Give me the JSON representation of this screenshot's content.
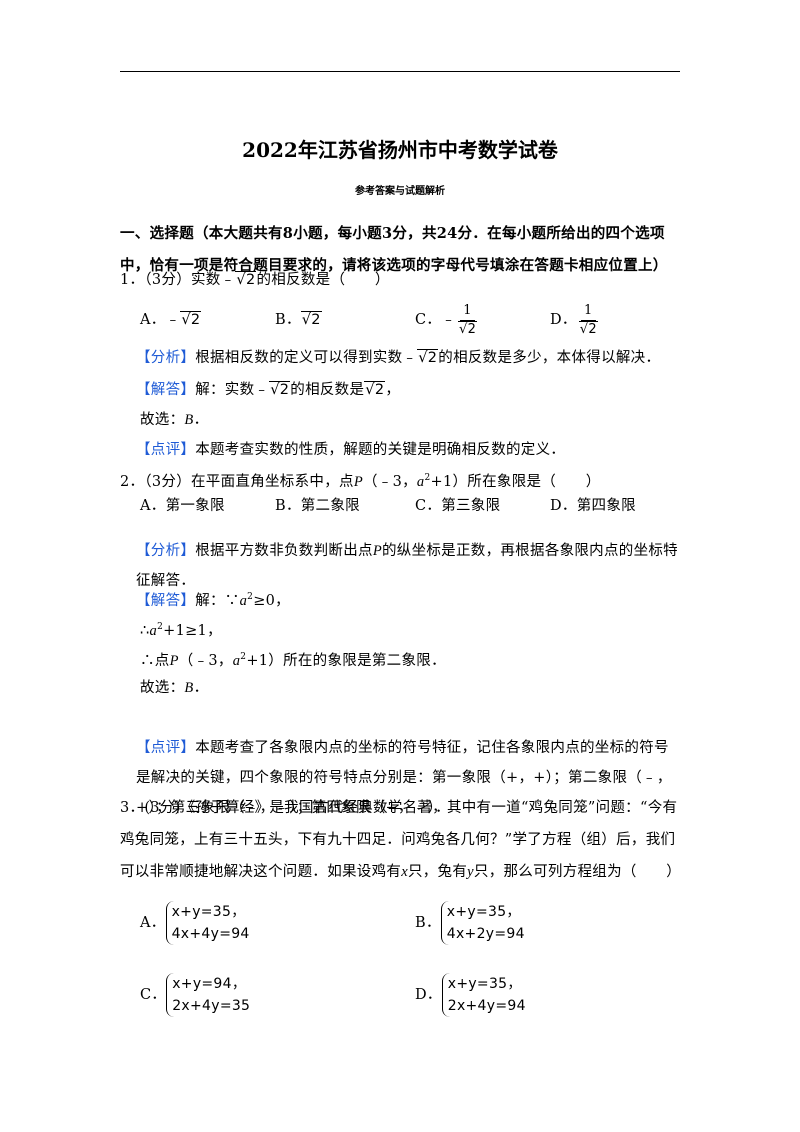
{
  "header": {
    "title": "2022年江苏省扬州市中考数学试卷",
    "subtitle": "参考答案与试题解析"
  },
  "section": {
    "heading": "一、选择题（本大题共有8小题，每小题3分，共24分．在每小题所给出的四个选项中，恰有一项是符合题目要求的，请将该选项的字母代号填涂在答题卡相应位置上）"
  },
  "questions": [
    {
      "stem": [
        "1．（3分）实数﹣",
        "√2",
        "的相反数是（　　）"
      ],
      "options": [
        [
          "A．",
          "﹣",
          "√2"
        ],
        [
          "B．",
          "√2"
        ],
        [
          "C．",
          "﹣",
          "1",
          "√2"
        ],
        [
          "D．",
          "1",
          "√2"
        ]
      ],
      "analysis": [
        "【分析】",
        "根据相反数的定义可以得到实数﹣",
        "√2",
        "的相反数是多少，本体得以解决．"
      ],
      "answer": [
        "【解答】",
        "解：实数﹣",
        "√2",
        "的相反数是",
        "√2",
        "，"
      ],
      "choice": [
        "故选：",
        "B",
        "．"
      ],
      "comment": [
        "【点评】",
        "本题考查实数的性质，解题的关键是明确相反数的定义．"
      ]
    },
    {
      "stem": [
        "2．（3分）在平面直角坐标系中，点",
        "P",
        "（﹣3，",
        "a",
        "2",
        "+1）所在象限是（　　）"
      ],
      "options": [
        [
          "A．第一象限"
        ],
        [
          "B．第二象限"
        ],
        [
          "C．第三象限"
        ],
        [
          "D．第四象限"
        ]
      ],
      "analysis": [
        "【分析】",
        "根据平方数非负数判断出点",
        "P",
        "的纵坐标是正数，再根据各象限内点的坐标特征解答．"
      ],
      "answer": [
        "【解答】",
        "解：∵",
        "a",
        "2",
        "≥0，"
      ],
      "steps": [
        [
          "∴",
          "a",
          "2",
          "+1≥1，"
        ],
        [
          "∴点",
          "P",
          "（﹣3，",
          "a",
          "2",
          "+1）所在的象限是第二象限．"
        ]
      ],
      "choice": [
        "故选：",
        "B",
        "．"
      ],
      "comment": [
        "【点评】",
        "本题考查了各象限内点的坐标的符号特征，记住各象限内点的坐标的符号是解决的关键，四个象限的符号特点分别是：第一象限（+，+）；第二象限（﹣，+）；第三象限（﹣，﹣）；第四象限（+，﹣）．"
      ]
    },
    {
      "stem": [
        "3．(3分)《孙子算经》是我国古代经典数学名著，其中有一道“鸡兔同笼”问题：“今有鸡兔同笼，上有三十五头，下有九十四足．问鸡兔各几何？”学了方程（组）后，我们可以非常顺捷地解决这个问题．如果设鸡有",
        "x",
        "只，兔有",
        "y",
        "只，那么可列方程组为（　　）"
      ],
      "options": [
        [
          "A．",
          "x+y=35，",
          "4x+4y=94"
        ],
        [
          "B．",
          "x+y=35，",
          "4x+2y=94"
        ],
        [
          "C．",
          "x+y=94，",
          "2x+4y=35"
        ],
        [
          "D．",
          "x+y=35，",
          "2x+4y=94"
        ]
      ]
    }
  ]
}
